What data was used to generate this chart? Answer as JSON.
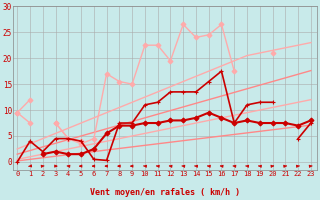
{
  "xlabel": "Vent moyen/en rafales ( km/h )",
  "xlabel_color": "#cc0000",
  "background_color": "#c8eaea",
  "grid_color": "#aaaaaa",
  "x": [
    0,
    1,
    2,
    3,
    4,
    5,
    6,
    7,
    8,
    9,
    10,
    11,
    12,
    13,
    14,
    15,
    16,
    17,
    18,
    19,
    20,
    21,
    22,
    23
  ],
  "ylim": [
    -1.5,
    30
  ],
  "xlim": [
    -0.3,
    23.5
  ],
  "yticks": [
    0,
    5,
    10,
    15,
    20,
    25,
    30
  ],
  "xtick_labels": [
    "0",
    "1",
    "2",
    "3",
    "4",
    "5",
    "6",
    "7",
    "8",
    "9",
    "10",
    "11",
    "12",
    "13",
    "14",
    "15",
    "16",
    "17",
    "18",
    "19",
    "20",
    "21",
    "22",
    "23"
  ],
  "series": [
    {
      "y": [
        2.5,
        3.5,
        4.5,
        5.5,
        6.5,
        7.5,
        8.5,
        9.5,
        10.5,
        11.5,
        12.5,
        13.5,
        14.5,
        15.5,
        16.5,
        17.5,
        18.5,
        19.5,
        20.5,
        21.0,
        21.5,
        22.0,
        22.5,
        23.0
      ],
      "color": "#ffaaaa",
      "lw": 1.0,
      "marker": null,
      "zorder": 2
    },
    {
      "y": [
        0.5,
        1.0,
        1.5,
        2.0,
        2.5,
        3.0,
        3.5,
        4.0,
        4.5,
        5.0,
        5.5,
        6.0,
        6.5,
        7.0,
        7.5,
        8.0,
        8.5,
        9.0,
        9.5,
        10.0,
        10.5,
        11.0,
        11.5,
        12.0
      ],
      "color": "#ffaaaa",
      "lw": 1.0,
      "marker": null,
      "zorder": 2
    },
    {
      "y": [
        1.5,
        2.2,
        2.9,
        3.6,
        4.3,
        5.0,
        5.7,
        6.4,
        7.1,
        7.8,
        8.5,
        9.2,
        9.9,
        10.6,
        11.3,
        12.0,
        12.7,
        13.4,
        14.1,
        14.8,
        15.5,
        16.2,
        16.9,
        17.6
      ],
      "color": "#ff8888",
      "lw": 1.0,
      "marker": null,
      "zorder": 3
    },
    {
      "y": [
        0.2,
        0.5,
        0.8,
        1.1,
        1.4,
        1.7,
        2.0,
        2.3,
        2.6,
        2.9,
        3.2,
        3.5,
        3.8,
        4.1,
        4.4,
        4.7,
        5.0,
        5.3,
        5.6,
        5.9,
        6.2,
        6.5,
        6.8,
        7.1
      ],
      "color": "#ff8888",
      "lw": 1.0,
      "marker": null,
      "zorder": 3
    },
    {
      "y": [
        9.5,
        12.0,
        null,
        7.5,
        4.5,
        3.5,
        4.5,
        17.0,
        15.5,
        15.0,
        22.5,
        22.5,
        19.5,
        26.5,
        24.0,
        24.5,
        26.5,
        17.5,
        null,
        null,
        21.0,
        null,
        null,
        null
      ],
      "color": "#ffaaaa",
      "lw": 1.0,
      "marker": "D",
      "ms": 2.5,
      "zorder": 4
    },
    {
      "y": [
        9.5,
        7.5,
        null,
        7.5,
        4.5,
        4.0,
        null,
        null,
        null,
        null,
        null,
        null,
        null,
        null,
        null,
        null,
        null,
        null,
        null,
        null,
        null,
        null,
        null,
        null
      ],
      "color": "#ffaaaa",
      "lw": 1.0,
      "marker": "D",
      "ms": 2.5,
      "zorder": 4
    },
    {
      "y": [
        0.0,
        4.0,
        2.0,
        4.5,
        4.5,
        4.0,
        0.5,
        0.3,
        7.5,
        7.5,
        11.0,
        11.5,
        13.5,
        13.5,
        13.5,
        15.5,
        17.5,
        7.5,
        11.0,
        11.5,
        11.5,
        null,
        4.5,
        7.5
      ],
      "color": "#cc0000",
      "lw": 1.2,
      "marker": "+",
      "ms": 3.5,
      "zorder": 6
    },
    {
      "y": [
        null,
        null,
        1.5,
        2.0,
        1.5,
        1.5,
        2.5,
        5.5,
        7.0,
        7.0,
        7.5,
        7.5,
        8.0,
        8.0,
        8.5,
        9.5,
        8.5,
        7.5,
        8.0,
        7.5,
        7.5,
        7.5,
        7.0,
        8.0
      ],
      "color": "#cc0000",
      "lw": 1.5,
      "marker": "D",
      "ms": 2.5,
      "zorder": 6
    }
  ],
  "wind_x": [
    1,
    2,
    3,
    4,
    5,
    6,
    7,
    8,
    9,
    10,
    11,
    12,
    13,
    14,
    15,
    16,
    17,
    18,
    19,
    20,
    21,
    22,
    23
  ],
  "wind_angles_deg": [
    225,
    45,
    90,
    315,
    270,
    270,
    270,
    270,
    270,
    315,
    315,
    315,
    315,
    315,
    315,
    315,
    315,
    315,
    315,
    45,
    45,
    45,
    45
  ]
}
